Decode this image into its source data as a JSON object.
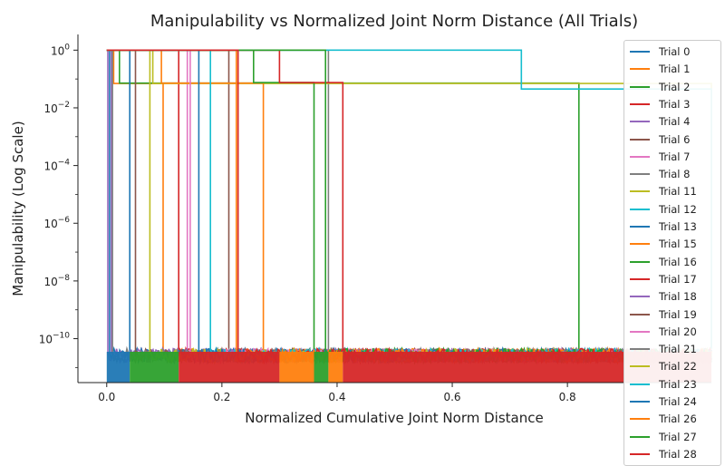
{
  "chart_data": {
    "type": "line",
    "title": "Manipulability vs Normalized Joint Norm Distance (All Trials)",
    "xlabel": "Normalized Cumulative Joint Norm Distance",
    "ylabel": "Manipulability (Log Scale)",
    "xscale": "linear",
    "yscale": "log",
    "xlim": [
      -0.05,
      1.05
    ],
    "ylim": [
      3e-12,
      3.5
    ],
    "x_ticks": [
      "0.0",
      "0.2",
      "0.4",
      "0.6",
      "0.8"
    ],
    "x_tick_values": [
      0.0,
      0.2,
      0.4,
      0.6,
      0.8
    ],
    "y_tick_exponents": [
      0,
      -2,
      -4,
      -6,
      -8,
      -10
    ],
    "y_tick_labels": [
      "10",
      "10",
      "10",
      "10",
      "10",
      "10"
    ],
    "y_tick_sup": [
      "0",
      "−2",
      "−4",
      "−6",
      "−8",
      "−10"
    ],
    "grid": false,
    "legend_position": "right",
    "series": [
      {
        "name": "Trial 0",
        "color": "#1f77b4",
        "drop": 0.005,
        "high": 1.0,
        "plateau_end": null
      },
      {
        "name": "Trial 1",
        "color": "#ff7f0e",
        "drop": 0.012,
        "high": 0.07,
        "plateau_end": 0.098
      },
      {
        "name": "Trial 2",
        "color": "#2ca02c",
        "drop": 0.022,
        "high": 0.072,
        "plateau_end": 0.82
      },
      {
        "name": "Trial 3",
        "color": "#d62728",
        "drop": 0.03,
        "high": 1.0,
        "plateau_end": 0.125
      },
      {
        "name": "Trial 4",
        "color": "#9467bd",
        "drop": 0.008,
        "high": 1.0,
        "plateau_end": null
      },
      {
        "name": "Trial 6",
        "color": "#8c564b",
        "drop": 0.045,
        "high": 1.0,
        "plateau_end": 0.212
      },
      {
        "name": "Trial 7",
        "color": "#e377c2",
        "drop": 0.14,
        "high": 1.0,
        "plateau_end": null
      },
      {
        "name": "Trial 8",
        "color": "#7f7f7f",
        "drop": 0.23,
        "high": 1.0,
        "plateau_end": 0.385
      },
      {
        "name": "Trial 11",
        "color": "#bcbd22",
        "drop": 0.08,
        "high": 0.07,
        "plateau_end": 1.05
      },
      {
        "name": "Trial 12",
        "color": "#17becf",
        "drop": 0.72,
        "high": 0.045,
        "plateau_end": 1.05
      },
      {
        "name": "Trial 13",
        "color": "#1f77b4",
        "drop": 0.04,
        "high": 1.0,
        "plateau_end": null
      },
      {
        "name": "Trial 15",
        "color": "#ff7f0e",
        "drop": 0.095,
        "high": 0.072,
        "plateau_end": 0.272
      },
      {
        "name": "Trial 16",
        "color": "#2ca02c",
        "drop": 0.255,
        "high": 0.075,
        "plateau_end": 0.36
      },
      {
        "name": "Trial 17",
        "color": "#d62728",
        "drop": 0.3,
        "high": 0.075,
        "plateau_end": 0.41
      },
      {
        "name": "Trial 18",
        "color": "#9467bd",
        "drop": 0.002,
        "high": 1.0,
        "plateau_end": null
      },
      {
        "name": "Trial 19",
        "color": "#8c564b",
        "drop": 0.05,
        "high": 1.0,
        "plateau_end": null
      },
      {
        "name": "Trial 20",
        "color": "#e377c2",
        "drop": 0.145,
        "high": 1.0,
        "plateau_end": null
      },
      {
        "name": "Trial 21",
        "color": "#7f7f7f",
        "drop": 0.01,
        "high": 1.0,
        "plateau_end": null
      },
      {
        "name": "Trial 22",
        "color": "#bcbd22",
        "drop": 0.075,
        "high": 1.0,
        "plateau_end": null
      },
      {
        "name": "Trial 23",
        "color": "#17becf",
        "drop": 0.18,
        "high": 1.0,
        "plateau_end": null
      },
      {
        "name": "Trial 24",
        "color": "#1f77b4",
        "drop": 0.16,
        "high": 1.0,
        "plateau_end": null
      },
      {
        "name": "Trial 26",
        "color": "#ff7f0e",
        "drop": 0.225,
        "high": 1.0,
        "plateau_end": null
      },
      {
        "name": "Trial 27",
        "color": "#2ca02c",
        "drop": 0.38,
        "high": 0.075,
        "plateau_end": null
      },
      {
        "name": "Trial 28",
        "color": "#d62728",
        "drop": 0.125,
        "high": 1.0,
        "plateau_end": 0.228
      }
    ],
    "baseline_band": {
      "min": 1.5e-11,
      "max": 4.5e-11,
      "x_max": 1.05
    }
  }
}
